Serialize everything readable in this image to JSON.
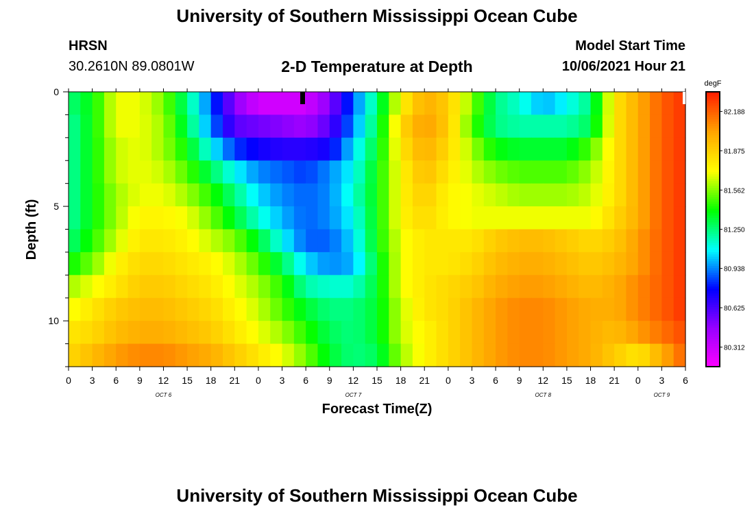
{
  "header": {
    "title": "University of Southern Mississippi Ocean Cube",
    "station": "HRSN",
    "coords": "30.2610N  89.0801W",
    "plot_title": "2-D Temperature at Depth",
    "model_start_label": "Model Start Time",
    "model_start_value": "10/06/2021 Hour 21",
    "footer_title": "University of Southern Mississippi Ocean Cube"
  },
  "chart_data": {
    "type": "heatmap",
    "title": "2-D Temperature at Depth",
    "xlabel": "Forecast Time(Z)",
    "ylabel": "Depth (ft)",
    "x_tick_labels": [
      "0",
      "3",
      "6",
      "9",
      "12",
      "15",
      "18",
      "21",
      "0",
      "3",
      "6",
      "9",
      "12",
      "15",
      "18",
      "21",
      "0",
      "3",
      "6",
      "9",
      "12",
      "15",
      "18",
      "21",
      "0",
      "3",
      "6"
    ],
    "x_range_hours": [
      0,
      78
    ],
    "date_labels": [
      {
        "label": "OCT 6",
        "hour": 12
      },
      {
        "label": "OCT 7",
        "hour": 36
      },
      {
        "label": "OCT 8",
        "hour": 60
      },
      {
        "label": "OCT 9",
        "hour": 75
      }
    ],
    "y_tick_labels": [
      "0",
      "5",
      "10"
    ],
    "y_range_ft": [
      0,
      12
    ],
    "y_inverted": true,
    "colorbar": {
      "unit": "degF",
      "ticks": [
        "82.188",
        "81.875",
        "81.562",
        "81.250",
        "80.938",
        "80.625",
        "80.312"
      ],
      "min": 80.156,
      "max": 82.344,
      "colors": [
        "#ff00ff",
        "#9900ff",
        "#0000ff",
        "#00ffff",
        "#00ff00",
        "#ffff00",
        "#ffa500",
        "#ff2000"
      ]
    },
    "depth_levels_ft": [
      0.5,
      1.5,
      2.5,
      3.5,
      4.5,
      5.5,
      6.5,
      7.5,
      8.5,
      9.5,
      10.5,
      11.5
    ],
    "time_hours": [
      0,
      3,
      6,
      9,
      12,
      15,
      18,
      21,
      24,
      27,
      30,
      33,
      36,
      39,
      42,
      45,
      48,
      51,
      54,
      57,
      60,
      63,
      66,
      69,
      72,
      75,
      78
    ],
    "temperature_degF": [
      [
        81.25,
        81.4,
        81.7,
        81.7,
        81.56,
        81.25,
        80.9,
        80.5,
        80.3,
        80.3,
        80.3,
        80.5,
        80.9,
        81.25,
        81.75,
        82.0,
        81.9,
        81.56,
        81.25,
        81.15,
        81.0,
        81.1,
        81.25,
        81.8,
        82.0,
        82.2,
        82.3
      ],
      [
        81.2,
        81.4,
        81.7,
        81.7,
        81.6,
        81.3,
        80.95,
        80.6,
        80.55,
        80.5,
        80.45,
        80.6,
        80.95,
        81.3,
        81.85,
        82.05,
        81.9,
        81.5,
        81.25,
        81.2,
        81.2,
        81.2,
        81.3,
        81.8,
        82.0,
        82.2,
        82.3
      ],
      [
        81.2,
        81.4,
        81.65,
        81.7,
        81.6,
        81.4,
        81.1,
        80.85,
        80.75,
        80.7,
        80.7,
        80.75,
        81.05,
        81.35,
        81.8,
        82.0,
        81.85,
        81.6,
        81.4,
        81.35,
        81.35,
        81.35,
        81.5,
        81.8,
        82.0,
        82.2,
        82.3
      ],
      [
        81.2,
        81.4,
        81.65,
        81.7,
        81.65,
        81.5,
        81.3,
        81.1,
        80.95,
        80.9,
        80.85,
        80.95,
        81.1,
        81.4,
        81.75,
        81.95,
        81.8,
        81.65,
        81.55,
        81.5,
        81.5,
        81.5,
        81.6,
        81.8,
        82.0,
        82.2,
        82.3
      ],
      [
        81.2,
        81.4,
        81.6,
        81.7,
        81.7,
        81.6,
        81.45,
        81.25,
        81.05,
        80.95,
        80.9,
        80.95,
        81.15,
        81.4,
        81.75,
        81.9,
        81.75,
        81.7,
        81.65,
        81.6,
        81.6,
        81.6,
        81.65,
        81.8,
        82.0,
        82.2,
        82.3
      ],
      [
        81.2,
        81.4,
        81.6,
        81.75,
        81.75,
        81.7,
        81.55,
        81.35,
        81.15,
        81.0,
        80.9,
        80.95,
        81.1,
        81.4,
        81.75,
        81.85,
        81.75,
        81.7,
        81.7,
        81.7,
        81.7,
        81.7,
        81.7,
        81.85,
        82.0,
        82.2,
        82.3
      ],
      [
        81.25,
        81.45,
        81.65,
        81.8,
        81.8,
        81.75,
        81.65,
        81.55,
        81.35,
        81.1,
        80.9,
        80.9,
        81.05,
        81.4,
        81.7,
        81.8,
        81.8,
        81.8,
        81.9,
        81.95,
        81.95,
        81.9,
        81.85,
        81.9,
        82.05,
        82.2,
        82.3
      ],
      [
        81.4,
        81.55,
        81.75,
        81.85,
        81.85,
        81.8,
        81.75,
        81.65,
        81.5,
        81.3,
        81.05,
        80.95,
        81.0,
        81.35,
        81.7,
        81.8,
        81.8,
        81.85,
        81.95,
        82.0,
        82.0,
        81.95,
        81.9,
        81.95,
        82.05,
        82.2,
        82.3
      ],
      [
        81.6,
        81.7,
        81.8,
        81.9,
        81.9,
        81.85,
        81.8,
        81.7,
        81.6,
        81.45,
        81.2,
        81.15,
        81.15,
        81.35,
        81.7,
        81.8,
        81.85,
        81.9,
        82.0,
        82.05,
        82.05,
        82.0,
        81.95,
        82.0,
        82.1,
        82.2,
        82.3
      ],
      [
        81.7,
        81.8,
        81.9,
        81.95,
        81.95,
        81.9,
        81.85,
        81.75,
        81.65,
        81.5,
        81.35,
        81.25,
        81.25,
        81.35,
        81.65,
        81.8,
        81.85,
        81.95,
        82.05,
        82.1,
        82.1,
        82.05,
        82.0,
        82.0,
        82.1,
        82.2,
        82.3
      ],
      [
        81.8,
        81.85,
        81.95,
        82.0,
        82.0,
        81.95,
        81.9,
        81.8,
        81.7,
        81.6,
        81.45,
        81.3,
        81.25,
        81.35,
        81.65,
        81.75,
        81.85,
        81.95,
        82.05,
        82.1,
        82.1,
        82.05,
        82.0,
        81.95,
        82.05,
        82.15,
        82.25
      ],
      [
        81.85,
        81.95,
        82.05,
        82.1,
        82.1,
        82.05,
        82.0,
        81.9,
        81.8,
        81.7,
        81.55,
        81.35,
        81.25,
        81.3,
        81.6,
        81.75,
        81.85,
        81.95,
        82.05,
        82.1,
        82.1,
        82.05,
        82.0,
        81.9,
        81.8,
        82.0,
        82.2
      ]
    ]
  }
}
